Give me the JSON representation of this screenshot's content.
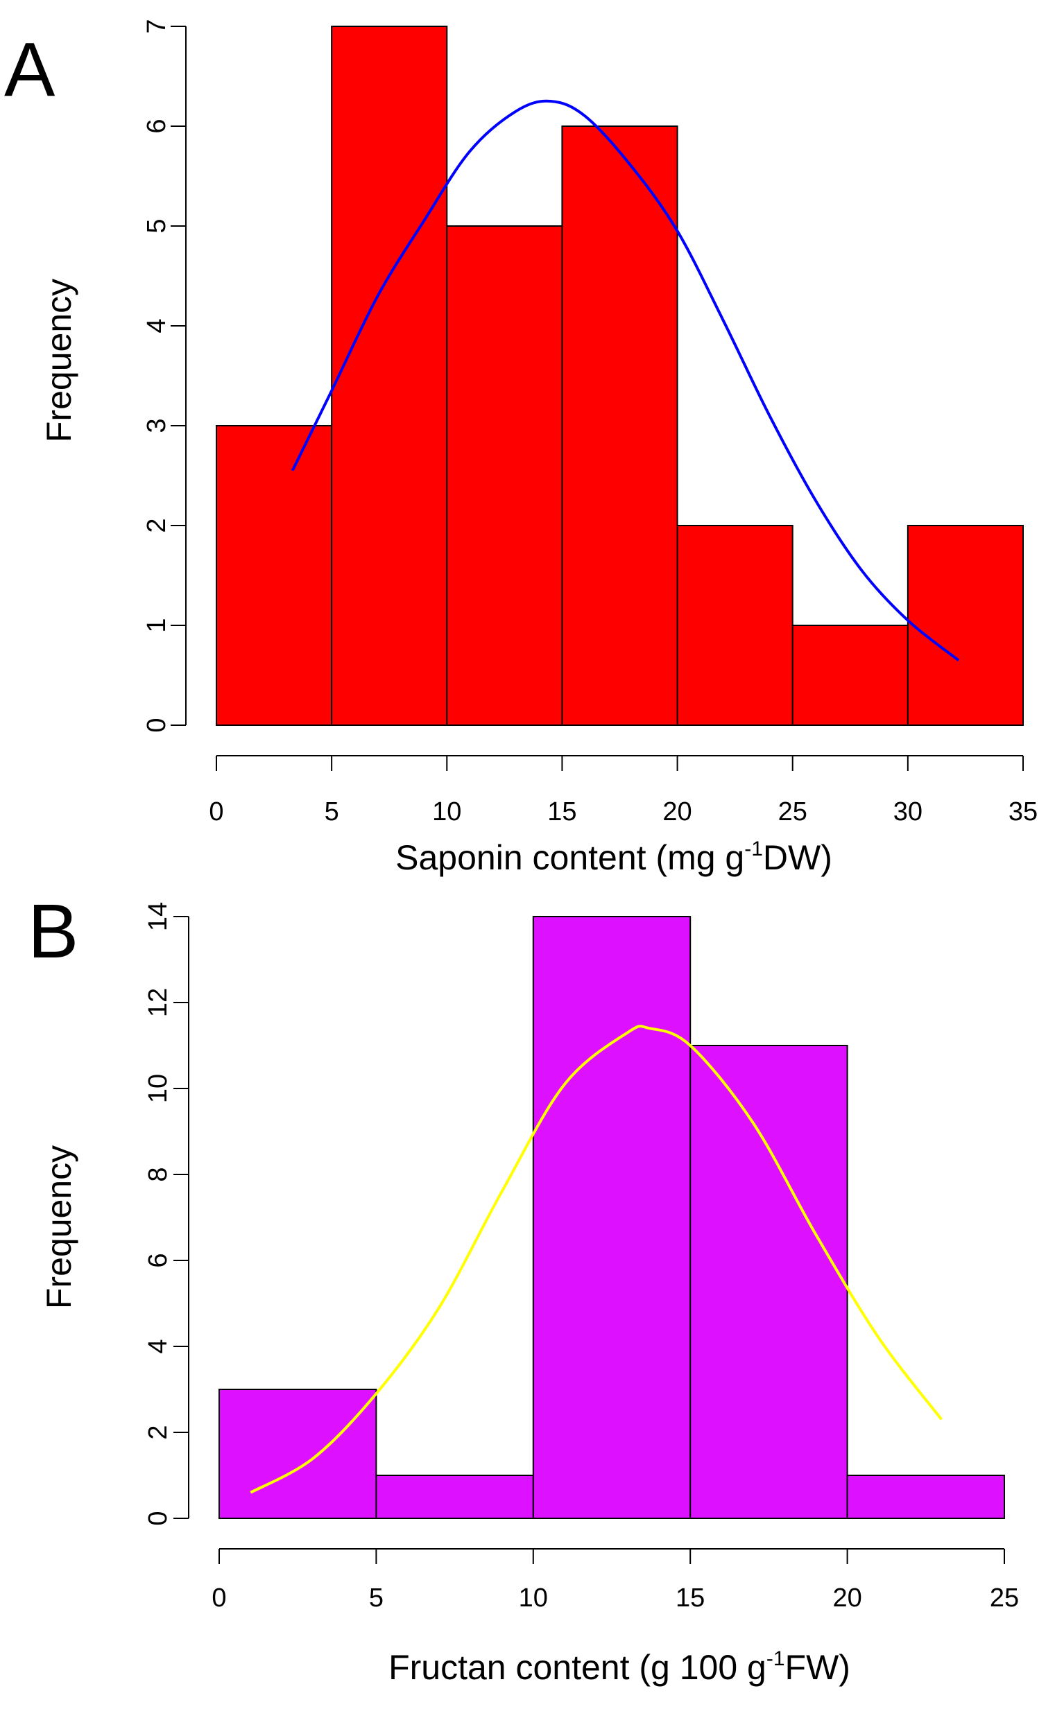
{
  "chart_data": [
    {
      "panel": "A",
      "type": "bar",
      "subtype": "histogram",
      "bin_edges": [
        0,
        5,
        10,
        15,
        20,
        25,
        30,
        35
      ],
      "values": [
        3,
        7,
        5,
        6,
        2,
        1,
        2
      ],
      "xlim": [
        0,
        35
      ],
      "ylim": [
        0,
        7
      ],
      "xticks": [
        0,
        5,
        10,
        15,
        20,
        25,
        30,
        35
      ],
      "yticks": [
        0,
        1,
        2,
        3,
        4,
        5,
        6,
        7
      ],
      "xlabel_main": "Saponin content (mg g",
      "xlabel_sup": "-1",
      "xlabel_tail": "DW)",
      "ylabel": "Frequency",
      "bar_color": "#ff0000",
      "curve_color": "#0000ff",
      "curve": {
        "type": "line",
        "x": [
          3.3,
          5,
          7,
          9,
          11,
          13,
          14.5,
          16,
          18,
          20,
          22,
          24,
          26,
          28,
          30,
          32.2
        ],
        "y": [
          2.55,
          3.35,
          4.3,
          5.05,
          5.75,
          6.15,
          6.25,
          6.1,
          5.6,
          4.95,
          4.05,
          3.1,
          2.25,
          1.55,
          1.05,
          0.65
        ]
      }
    },
    {
      "panel": "B",
      "type": "bar",
      "subtype": "histogram",
      "bin_edges": [
        0,
        5,
        10,
        15,
        20,
        25
      ],
      "values": [
        3,
        1,
        14,
        11,
        1
      ],
      "xlim": [
        0,
        25
      ],
      "ylim": [
        0,
        14
      ],
      "xticks": [
        0,
        5,
        10,
        15,
        20,
        25
      ],
      "yticks": [
        0,
        2,
        4,
        6,
        8,
        10,
        12,
        14
      ],
      "xlabel_main": "Fructan content (g 100 g",
      "xlabel_sup": "-1",
      "xlabel_tail": "FW)",
      "ylabel": "Frequency",
      "bar_color": "#dd11ff",
      "curve_color": "#ffff00",
      "curve": {
        "type": "line",
        "x": [
          1,
          3,
          5,
          7,
          9,
          11,
          13,
          13.7,
          15,
          17,
          19,
          21,
          23
        ],
        "y": [
          0.6,
          1.4,
          2.9,
          4.9,
          7.6,
          10.1,
          11.3,
          11.4,
          11.0,
          9.2,
          6.6,
          4.2,
          2.3
        ]
      }
    }
  ]
}
